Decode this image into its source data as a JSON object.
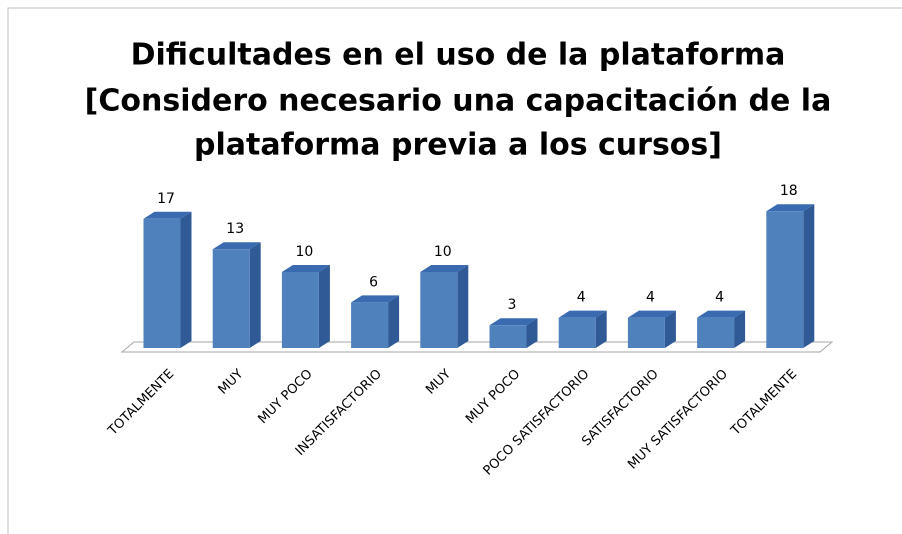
{
  "chart_data": {
    "type": "bar3d",
    "title": [
      "Dificultades en el uso de la plataforma",
      "[Considero necesario una capacitación de la",
      "plataforma previa a los cursos]"
    ],
    "categories": [
      "TOTALMENTE",
      "MUY",
      "MUY POCO",
      "INSATISFACTORIO",
      "MUY",
      "MUY POCO",
      "POCO SATISFACTORIO",
      "SATISFACTORIO",
      "MUY SATISFACTORIO",
      "TOTALMENTE"
    ],
    "values": [
      17,
      13,
      10,
      6,
      10,
      3,
      4,
      4,
      4,
      18
    ],
    "color": "#4f81bd"
  }
}
